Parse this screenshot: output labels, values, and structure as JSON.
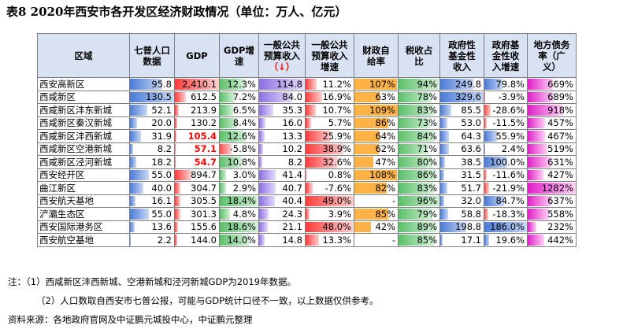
{
  "title": "表8 2020年西安市各开发区经济财政情况（单位：万人、亿元）",
  "headers": [
    [
      "区域"
    ],
    [
      "七普人口",
      "数据"
    ],
    [
      "GDP"
    ],
    [
      "GDP增",
      "速"
    ],
    [
      "一般公共",
      "预算收入",
      "（↓）"
    ],
    [
      "一般公共",
      "预算收入",
      "增速"
    ],
    [
      "财政自",
      "给率"
    ],
    [
      "税收占",
      "比"
    ],
    [
      "政府性",
      "基金性",
      "收入"
    ],
    [
      "政府基",
      "金性收",
      "入增速"
    ],
    [
      "地方债务",
      "率（广",
      "义）"
    ]
  ],
  "rows": [
    {
      "name": "西安高新区",
      "values": [
        "95.8",
        "2,410.1",
        "12.3%",
        "114.8",
        "11.2%",
        "107%",
        "94%",
        "249.8",
        "79.8%",
        "669%"
      ],
      "raw": [
        95.8,
        2410.1,
        12.3,
        114.8,
        11.2,
        107,
        94,
        249.8,
        79.8,
        669
      ]
    },
    {
      "name": "西咸新区",
      "values": [
        "130.5",
        "612.5",
        "7.2%",
        "84.0",
        "16.9%",
        "63%",
        "78%",
        "329.6",
        "-3.9%",
        "689%"
      ],
      "raw": [
        130.5,
        612.5,
        7.2,
        84.0,
        16.9,
        63,
        78,
        329.6,
        -3.9,
        689
      ]
    },
    {
      "name": "西咸新区沣东新城",
      "values": [
        "52.1",
        "213.9",
        "6.5%",
        "35.3",
        "10.7%",
        "109%",
        "83%",
        "85.5",
        "-28.6%",
        "918%"
      ],
      "raw": [
        52.1,
        213.9,
        6.5,
        35.3,
        10.7,
        109,
        83,
        85.5,
        -28.6,
        918
      ]
    },
    {
      "name": "西咸新区秦汉新城",
      "values": [
        "20.0",
        "130.2",
        "8.4%",
        "16.0",
        "5.7%",
        "86%",
        "73%",
        "53.0",
        "-11.5%",
        "457%"
      ],
      "raw": [
        20.0,
        130.2,
        8.4,
        16.0,
        5.7,
        86,
        73,
        53.0,
        -11.5,
        457
      ]
    },
    {
      "name": "西咸新区沣西新城",
      "values": [
        "31.9",
        "105.4",
        "12.6%",
        "13.3",
        "25.9%",
        "64%",
        "84%",
        "64.3",
        "55.9%",
        "467%"
      ],
      "raw": [
        31.9,
        105.4,
        12.6,
        13.3,
        25.9,
        64,
        84,
        64.3,
        55.9,
        467
      ],
      "gdp_highlight": true
    },
    {
      "name": "西咸新区空港新城",
      "values": [
        "8.2",
        "57.1",
        "-5.8%",
        "10.2",
        "38.9%",
        "62%",
        "71%",
        "63.6",
        "2.4%",
        "519%"
      ],
      "raw": [
        8.2,
        57.1,
        -5.8,
        10.2,
        38.9,
        62,
        71,
        63.6,
        2.4,
        519
      ],
      "gdp_highlight": true
    },
    {
      "name": "西咸新区泾河新城",
      "values": [
        "18.2",
        "54.7",
        "10.8%",
        "8.2",
        "32.6%",
        "47%",
        "80%",
        "38.5",
        "100.0%",
        "631%"
      ],
      "raw": [
        18.2,
        54.7,
        10.8,
        8.2,
        32.6,
        47,
        80,
        38.5,
        100.0,
        631
      ],
      "gdp_highlight": true
    },
    {
      "name": "西安经开区",
      "values": [
        "55.0",
        "894.7",
        "3.0%",
        "41.4",
        "0.8%",
        "108%",
        "86%",
        "31.5",
        "-11.6%",
        "427%"
      ],
      "raw": [
        55.0,
        894.7,
        3.0,
        41.4,
        0.8,
        108,
        86,
        31.5,
        -11.6,
        427
      ]
    },
    {
      "name": "曲江新区",
      "values": [
        "40.0",
        "304.7",
        "2.9%",
        "40.7",
        "-7.6%",
        "82%",
        "83%",
        "51.7",
        "-21.9%",
        "1282%"
      ],
      "raw": [
        40.0,
        304.7,
        2.9,
        40.7,
        -7.6,
        82,
        83,
        51.7,
        -21.9,
        1282
      ]
    },
    {
      "name": "西安航天基地",
      "values": [
        "16.1",
        "305.5",
        "18.4%",
        "40.4",
        "49.0%",
        "-",
        "96%",
        "32.0",
        "84.7%",
        "637%"
      ],
      "raw": [
        16.1,
        305.5,
        18.4,
        40.4,
        49.0,
        null,
        96,
        32.0,
        84.7,
        637
      ]
    },
    {
      "name": "浐灞生态区",
      "values": [
        "55.0",
        "301.3",
        "4.8%",
        "24.3",
        "3.9%",
        "85%",
        "79%",
        "58.8",
        "-18.3%",
        "558%"
      ],
      "raw": [
        55.0,
        301.3,
        4.8,
        24.3,
        3.9,
        85,
        79,
        58.8,
        -18.3,
        558
      ]
    },
    {
      "name": "西安国际港务区",
      "values": [
        "13.6",
        "155.6",
        "18.6%",
        "21.1",
        "48.0%",
        "42%",
        "89%",
        "198.8",
        "186.0%",
        "232%"
      ],
      "raw": [
        13.6,
        155.6,
        18.6,
        21.1,
        48.0,
        42,
        89,
        198.8,
        186.0,
        232
      ]
    },
    {
      "name": "西安航空基地",
      "values": [
        "2.2",
        "144.0",
        "14.0%",
        "14.8",
        "13.3%",
        "-",
        "85%",
        "17.1",
        "19.6%",
        "442%"
      ],
      "raw": [
        2.2,
        144.0,
        14.0,
        14.8,
        13.3,
        null,
        85,
        17.1,
        19.6,
        442
      ]
    }
  ],
  "notes": {
    "note1": "注：（1）西咸新区沣西新城、空港新城和泾河新城GDP为2019年数据。",
    "note2": "（2）人口数取自西安市七普公报，可能与GDP统计口径不一致，以上数据仅供参考。",
    "source": "资料来源：各地政府官网及中证鹏元城投中心，中证鹏元整理"
  },
  "colors": {
    "header_bg": "#d9e2f2",
    "highlight_text": "#ff0000"
  }
}
